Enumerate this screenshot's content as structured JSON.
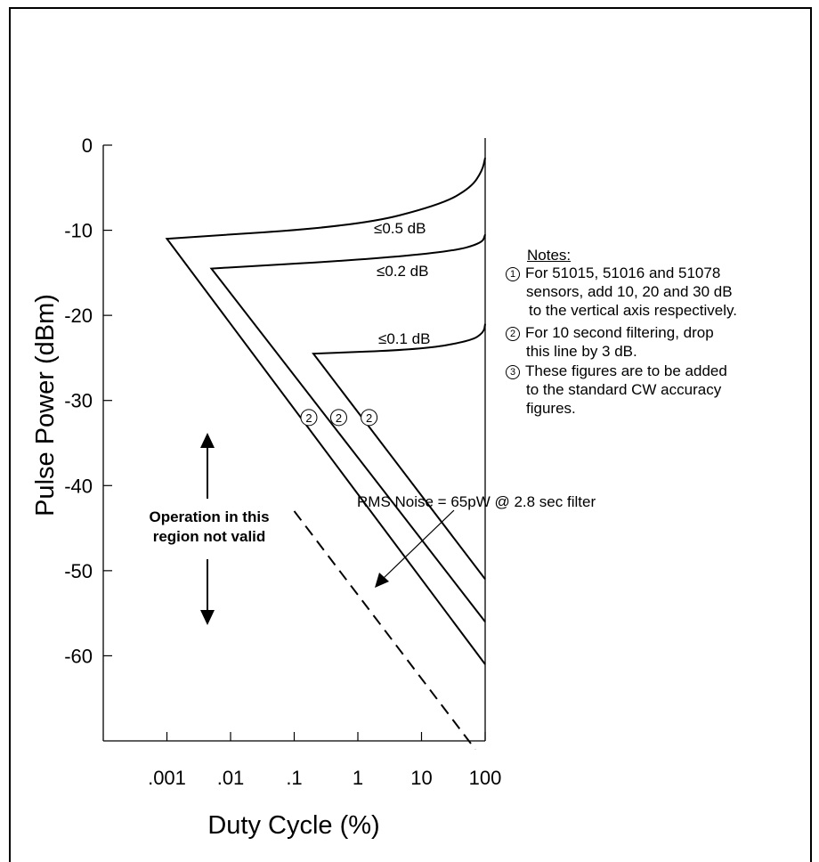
{
  "chart_data": {
    "type": "line",
    "xlabel": "Duty Cycle (%)",
    "ylabel": "Pulse Power (dBm)",
    "xscale": "log",
    "xlim": [
      0.0001,
      100
    ],
    "ylim": [
      -70,
      0
    ],
    "x_ticks": [
      {
        "value": 0.001,
        "label": ".001"
      },
      {
        "value": 0.01,
        "label": ".01"
      },
      {
        "value": 0.1,
        "label": ".1"
      },
      {
        "value": 1,
        "label": "1"
      },
      {
        "value": 10,
        "label": "10"
      },
      {
        "value": 100,
        "label": "100"
      }
    ],
    "y_ticks": [
      {
        "value": 0,
        "label": "0"
      },
      {
        "value": -10,
        "label": "-10"
      },
      {
        "value": -20,
        "label": "-20"
      },
      {
        "value": -30,
        "label": "-30"
      },
      {
        "value": -40,
        "label": "-40"
      },
      {
        "value": -50,
        "label": "-50"
      },
      {
        "value": -60,
        "label": "-60"
      }
    ],
    "series": [
      {
        "name": "≤0.5 dB",
        "style": "solid",
        "points": [
          [
            100,
            -61
          ],
          [
            0.001,
            -11
          ],
          [
            1,
            -9.5
          ],
          [
            20,
            -7
          ],
          [
            60,
            -5
          ],
          [
            90,
            -3
          ],
          [
            100,
            -1.5
          ]
        ]
      },
      {
        "name": "≤0.2 dB",
        "style": "solid",
        "points": [
          [
            100,
            -56
          ],
          [
            0.005,
            -14.5
          ],
          [
            1,
            -13.5
          ],
          [
            30,
            -12.5
          ],
          [
            90,
            -11.5
          ],
          [
            100,
            -10.5
          ]
        ]
      },
      {
        "name": "≤0.1 dB",
        "style": "solid",
        "points": [
          [
            100,
            -51
          ],
          [
            0.2,
            -24.5
          ],
          [
            10,
            -24
          ],
          [
            60,
            -23
          ],
          [
            95,
            -22
          ],
          [
            100,
            -21
          ]
        ]
      },
      {
        "name": "",
        "style": "dashed",
        "points": [
          [
            0.1,
            -43
          ],
          [
            70,
            -71
          ]
        ]
      }
    ],
    "markers": [
      {
        "label": "②",
        "x": 0.17,
        "y": -32
      },
      {
        "label": "②",
        "x": 0.5,
        "y": -32
      },
      {
        "label": "②",
        "x": 1.5,
        "y": -32
      }
    ],
    "annotations": {
      "noise_text": "RMS Noise = 65pW @ 2.8 sec filter",
      "region_text_line1": "Operation in this",
      "region_text_line2": "region not valid"
    }
  },
  "notes": {
    "heading": "Notes:",
    "items": [
      {
        "num": "1",
        "lines": [
          "For 51015, 51016 and 51078",
          "sensors, add 10, 20 and 30 dB",
          "to the vertical axis respectively."
        ]
      },
      {
        "num": "2",
        "lines": [
          "For 10 second filtering, drop",
          "this line by 3 dB."
        ]
      },
      {
        "num": "3",
        "lines": [
          "These figures are to be added",
          "to the standard CW accuracy",
          "figures."
        ]
      }
    ]
  }
}
